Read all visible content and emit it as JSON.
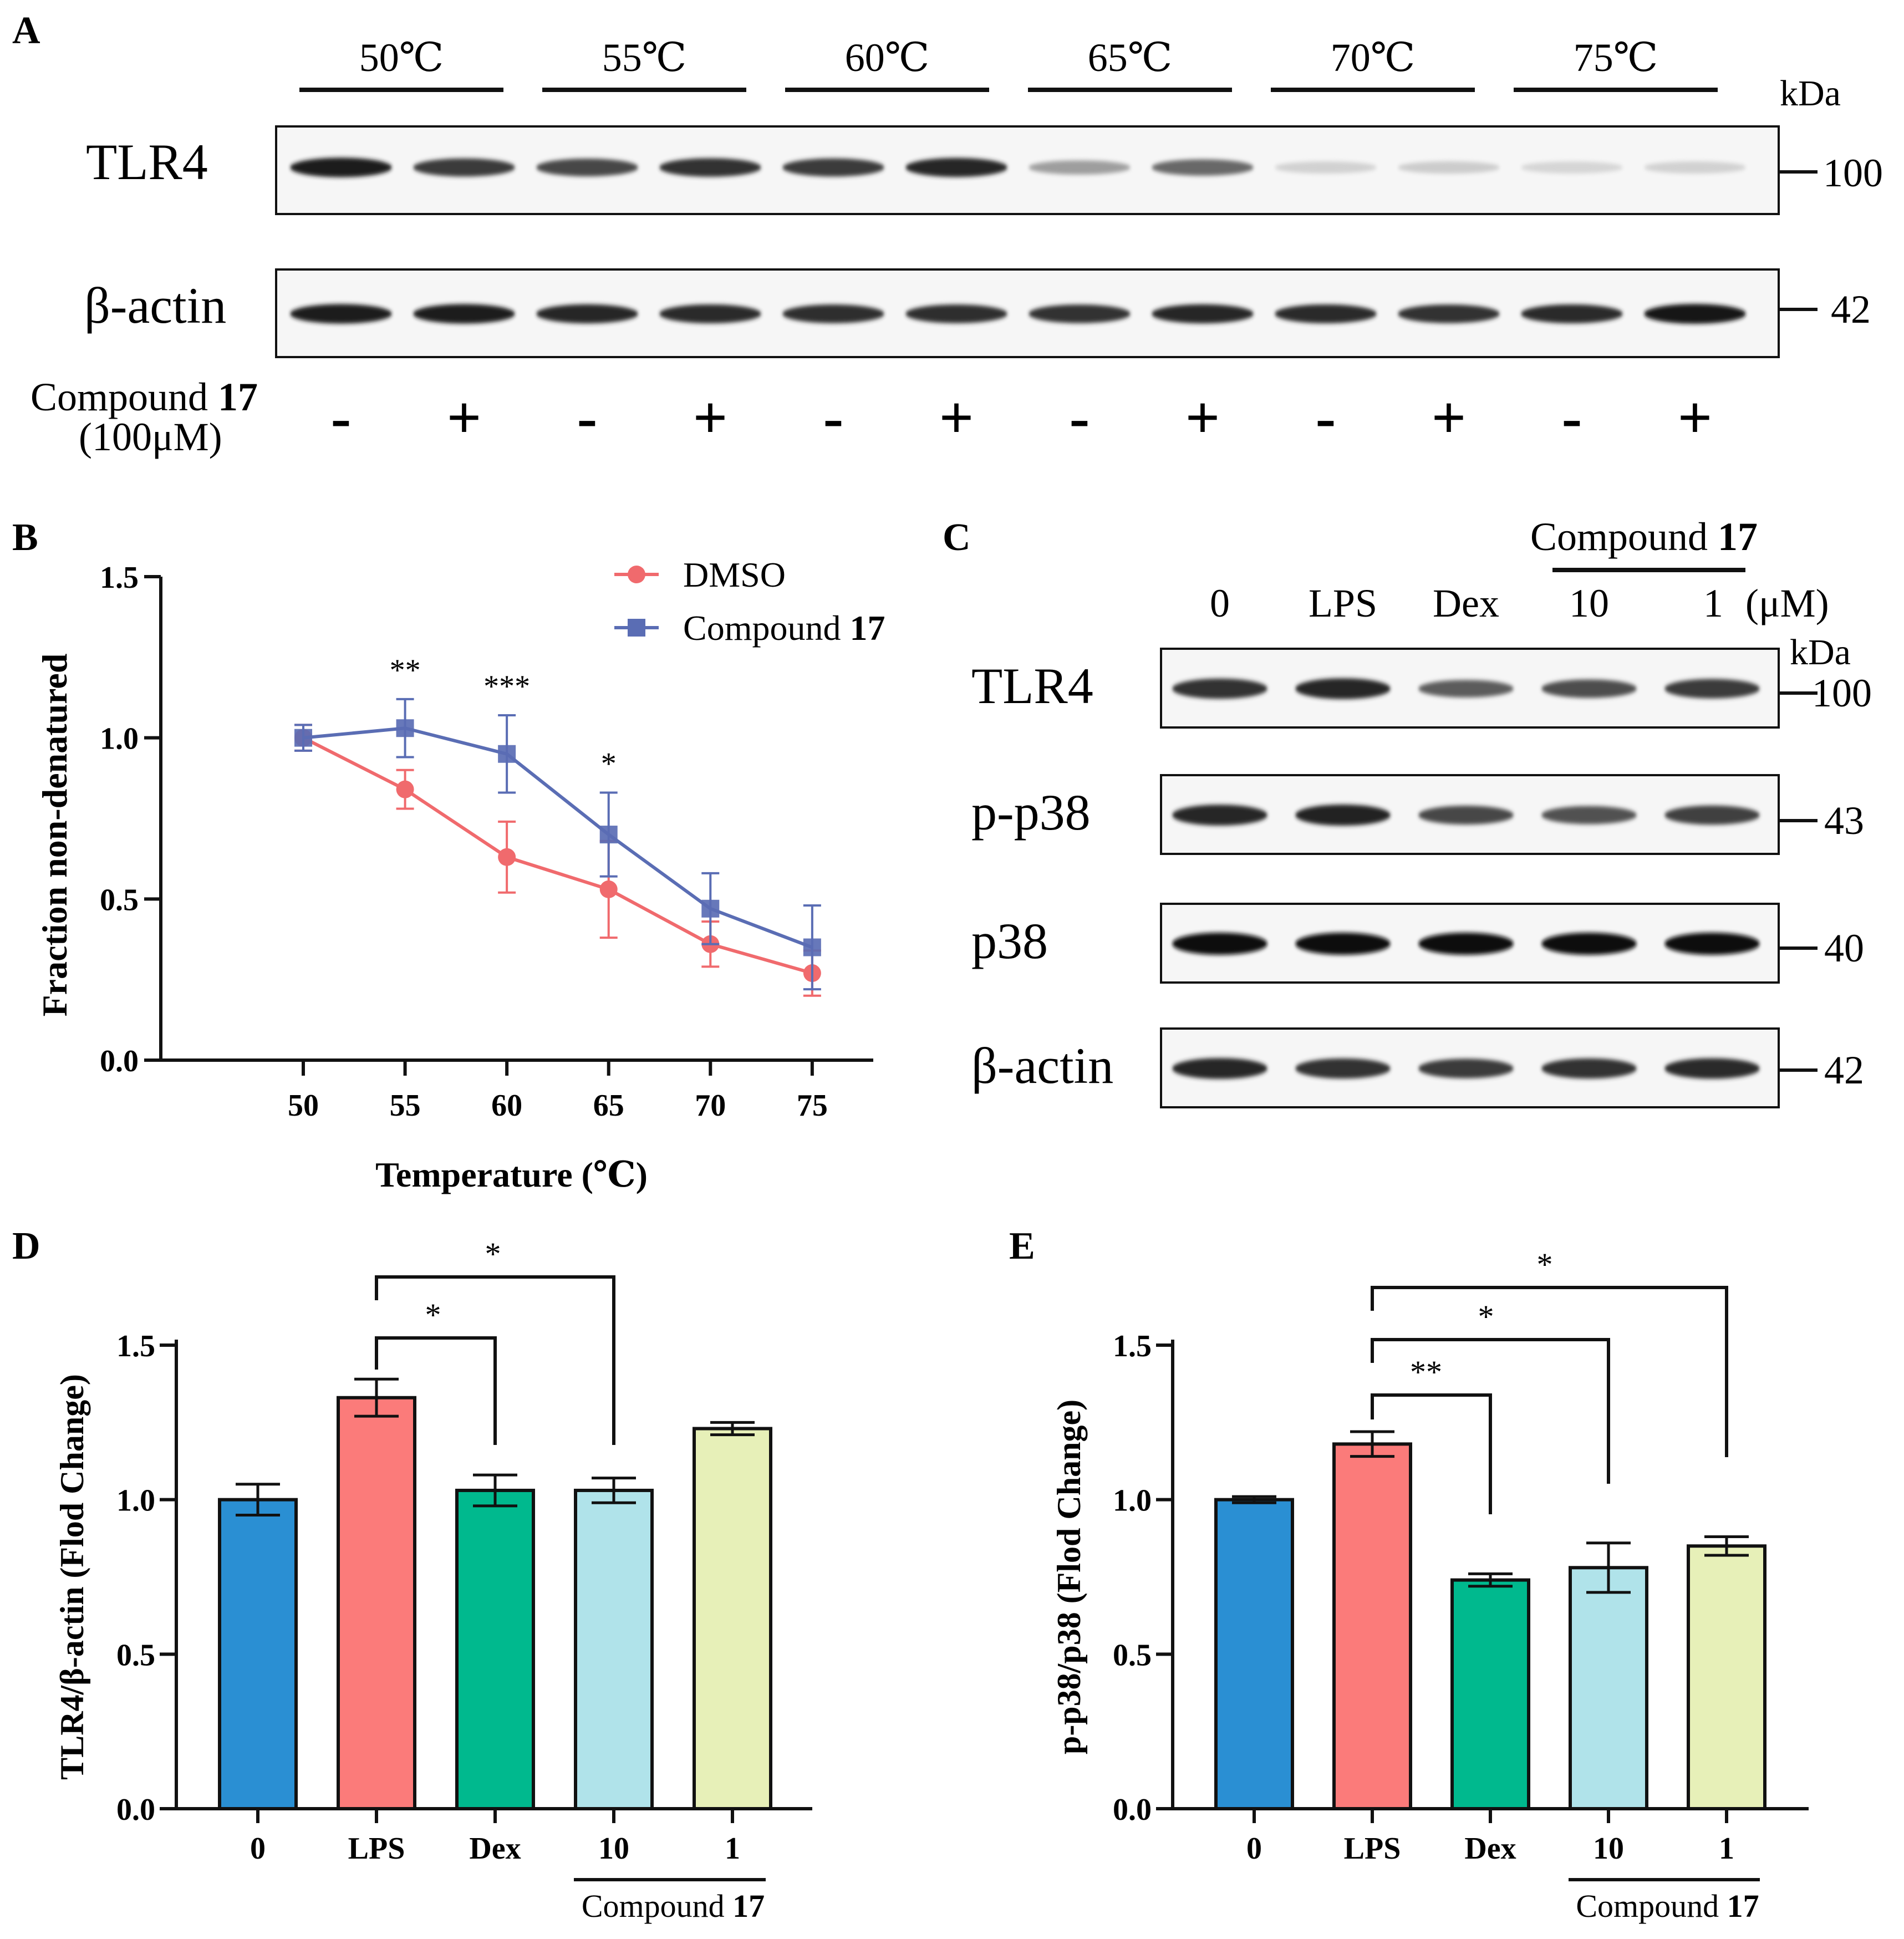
{
  "panels": {
    "a": {
      "label": "A",
      "temperatures": [
        "50℃",
        "55℃",
        "60℃",
        "65℃",
        "70℃",
        "75℃"
      ],
      "kda_header": "kDa",
      "blots": [
        {
          "name": "TLR4",
          "kda": "100",
          "bands": [
            0.95,
            0.8,
            0.75,
            0.85,
            0.8,
            0.9,
            0.35,
            0.6,
            0.12,
            0.14,
            0.1,
            0.12
          ]
        },
        {
          "name": "β-actin",
          "kda": "42",
          "bands": [
            0.95,
            0.95,
            0.9,
            0.88,
            0.86,
            0.86,
            0.85,
            0.9,
            0.88,
            0.85,
            0.88,
            0.98
          ]
        }
      ],
      "treatment_label_line1": "Compound",
      "treatment_label_bold": "17",
      "treatment_label_line2": "(100μM)",
      "treatment_signs": [
        "-",
        "+",
        "-",
        "+",
        "-",
        "+",
        "-",
        "+",
        "-",
        "+",
        "-",
        "+"
      ]
    },
    "b": {
      "label": "B",
      "significance": [
        "**",
        "***",
        "*"
      ]
    },
    "c": {
      "label": "C",
      "group_header": "Compound",
      "group_header_bold": "17",
      "lanes": [
        "0",
        "LPS",
        "Dex",
        "10",
        "1"
      ],
      "unit": "(μM)",
      "kda_header": "kDa",
      "blots": [
        {
          "name": "TLR4",
          "kda": "100",
          "bands": [
            0.85,
            0.9,
            0.65,
            0.72,
            0.8
          ]
        },
        {
          "name": "p-p38",
          "kda": "43",
          "bands": [
            0.9,
            0.92,
            0.75,
            0.7,
            0.78
          ]
        },
        {
          "name": "p38",
          "kda": "40",
          "bands": [
            1.0,
            1.0,
            1.0,
            1.0,
            1.0
          ]
        },
        {
          "name": "β-actin",
          "kda": "42",
          "bands": [
            0.9,
            0.85,
            0.8,
            0.85,
            0.88
          ]
        }
      ]
    },
    "d": {
      "label": "D",
      "compound_label": "Compound",
      "compound_bold": "17",
      "significance": [
        "*",
        "*"
      ]
    },
    "e": {
      "label": "E",
      "compound_label": "Compound",
      "compound_bold": "17",
      "significance": [
        "**",
        "*",
        "*"
      ]
    }
  },
  "colors": {
    "dmso": "#f06a6d",
    "compound17": "#5a6db4",
    "bar_0": "#2a8fd3",
    "bar_lps": "#fb7b7a",
    "bar_dex": "#00b98e",
    "bar_10": "#b0e3ea",
    "bar_1": "#e7f0b8"
  },
  "chart_data": [
    {
      "id": "B",
      "type": "line",
      "x": [
        50,
        55,
        60,
        65,
        70,
        75
      ],
      "series": [
        {
          "name": "DMSO",
          "values": [
            1.0,
            0.84,
            0.63,
            0.53,
            0.36,
            0.27
          ],
          "errors": [
            0.04,
            0.06,
            0.11,
            0.15,
            0.07,
            0.07
          ]
        },
        {
          "name": "Compound 17",
          "values": [
            1.0,
            1.03,
            0.95,
            0.7,
            0.47,
            0.35
          ],
          "errors": [
            0.04,
            0.09,
            0.12,
            0.13,
            0.11,
            0.13
          ]
        }
      ],
      "xlabel": "Temperature (℃)",
      "ylabel": "Fraction non-denatured",
      "xticks": [
        "50",
        "55",
        "60",
        "65",
        "70",
        "75"
      ],
      "yticks": [
        "0.0",
        "0.5",
        "1.0",
        "1.5"
      ],
      "xlim": [
        43,
        78
      ],
      "ylim": [
        0,
        1.5
      ]
    },
    {
      "id": "D",
      "type": "bar",
      "categories": [
        "0",
        "LPS",
        "Dex",
        "10",
        "1"
      ],
      "values": [
        1.0,
        1.33,
        1.03,
        1.03,
        1.23
      ],
      "errors": [
        0.05,
        0.06,
        0.05,
        0.04,
        0.02
      ],
      "ylabel": "TLR4/β-actin (Flod Change)",
      "yticks": [
        "0.0",
        "0.5",
        "1.0",
        "1.5"
      ],
      "ylim": [
        0,
        1.5
      ]
    },
    {
      "id": "E",
      "type": "bar",
      "categories": [
        "0",
        "LPS",
        "Dex",
        "10",
        "1"
      ],
      "values": [
        1.0,
        1.18,
        0.74,
        0.78,
        0.85
      ],
      "errors": [
        0.01,
        0.04,
        0.02,
        0.08,
        0.03
      ],
      "ylabel": "p-p38/p38 (Flod Change)",
      "yticks": [
        "0.0",
        "0.5",
        "1.0",
        "1.5"
      ],
      "ylim": [
        0,
        1.5
      ]
    }
  ]
}
